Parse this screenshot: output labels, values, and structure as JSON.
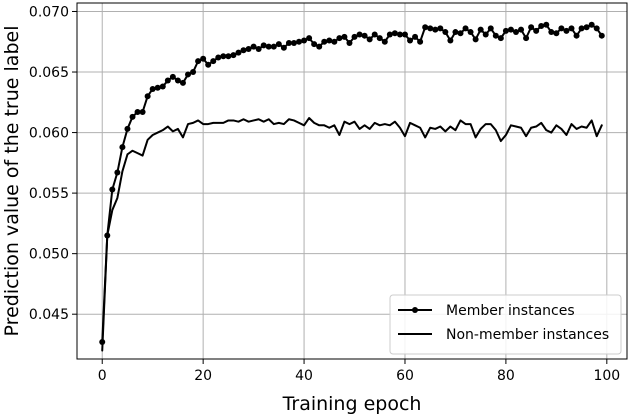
{
  "chart_data": {
    "type": "line",
    "title": "",
    "xlabel": "Training epoch",
    "ylabel": "Prediction value of the true label",
    "xlim": [
      -5,
      104
    ],
    "ylim": [
      0.0413,
      0.0707
    ],
    "xticks": [
      0,
      20,
      40,
      60,
      80,
      100
    ],
    "yticks": [
      0.045,
      0.05,
      0.055,
      0.06,
      0.065,
      0.07
    ],
    "xtick_labels": [
      "0",
      "20",
      "40",
      "60",
      "80",
      "100"
    ],
    "ytick_labels": [
      "0.045",
      "0.050",
      "0.055",
      "0.060",
      "0.065",
      "0.070"
    ],
    "grid": true,
    "legend_position": "lower-right",
    "x": [
      0,
      1,
      2,
      3,
      4,
      5,
      6,
      7,
      8,
      9,
      10,
      11,
      12,
      13,
      14,
      15,
      16,
      17,
      18,
      19,
      20,
      21,
      22,
      23,
      24,
      25,
      26,
      27,
      28,
      29,
      30,
      31,
      32,
      33,
      34,
      35,
      36,
      37,
      38,
      39,
      40,
      41,
      42,
      43,
      44,
      45,
      46,
      47,
      48,
      49,
      50,
      51,
      52,
      53,
      54,
      55,
      56,
      57,
      58,
      59,
      60,
      61,
      62,
      63,
      64,
      65,
      66,
      67,
      68,
      69,
      70,
      71,
      72,
      73,
      74,
      75,
      76,
      77,
      78,
      79,
      80,
      81,
      82,
      83,
      84,
      85,
      86,
      87,
      88,
      89,
      90,
      91,
      92,
      93,
      94,
      95,
      96,
      97,
      98,
      99
    ],
    "series": [
      {
        "name": "Member instances",
        "color": "#000000",
        "marker": "circle",
        "values": [
          0.0427,
          0.0515,
          0.0553,
          0.0567,
          0.0588,
          0.0603,
          0.0613,
          0.0617,
          0.0617,
          0.063,
          0.0636,
          0.0637,
          0.0638,
          0.0643,
          0.0646,
          0.0643,
          0.0641,
          0.0648,
          0.065,
          0.0659,
          0.0661,
          0.0656,
          0.0659,
          0.0662,
          0.0663,
          0.0663,
          0.0664,
          0.0666,
          0.0668,
          0.0669,
          0.0671,
          0.0669,
          0.0672,
          0.0671,
          0.0671,
          0.0673,
          0.067,
          0.0674,
          0.0674,
          0.0675,
          0.0676,
          0.0678,
          0.0673,
          0.0671,
          0.0675,
          0.0676,
          0.0675,
          0.0678,
          0.0679,
          0.0674,
          0.0679,
          0.0681,
          0.068,
          0.0677,
          0.0681,
          0.0678,
          0.0675,
          0.0681,
          0.0682,
          0.0681,
          0.0681,
          0.0676,
          0.0679,
          0.0675,
          0.0687,
          0.0686,
          0.0685,
          0.0686,
          0.0683,
          0.0676,
          0.0683,
          0.0682,
          0.0686,
          0.0683,
          0.0677,
          0.0685,
          0.0681,
          0.0686,
          0.068,
          0.0678,
          0.0684,
          0.0685,
          0.0683,
          0.0685,
          0.0678,
          0.0687,
          0.0684,
          0.0688,
          0.0689,
          0.0683,
          0.0682,
          0.0686,
          0.0684,
          0.0686,
          0.068,
          0.0686,
          0.0687,
          0.0689,
          0.0686,
          0.068
        ]
      },
      {
        "name": "Non-member instances",
        "color": "#000000",
        "marker": "none",
        "values": [
          0.042,
          0.0515,
          0.0536,
          0.0546,
          0.0568,
          0.0582,
          0.0585,
          0.0583,
          0.0581,
          0.0594,
          0.0598,
          0.06,
          0.0602,
          0.0605,
          0.0601,
          0.0603,
          0.0596,
          0.0607,
          0.0608,
          0.061,
          0.0607,
          0.0607,
          0.0608,
          0.0608,
          0.0608,
          0.061,
          0.061,
          0.0609,
          0.0611,
          0.0609,
          0.061,
          0.0611,
          0.0609,
          0.0611,
          0.0607,
          0.0608,
          0.0607,
          0.0611,
          0.061,
          0.0608,
          0.0606,
          0.0612,
          0.0608,
          0.0606,
          0.0606,
          0.0604,
          0.0606,
          0.0598,
          0.0609,
          0.0607,
          0.0609,
          0.0603,
          0.0606,
          0.0603,
          0.0608,
          0.0606,
          0.0607,
          0.0606,
          0.0609,
          0.0604,
          0.0597,
          0.0608,
          0.0606,
          0.0604,
          0.0596,
          0.0604,
          0.0603,
          0.0605,
          0.0601,
          0.0605,
          0.0602,
          0.061,
          0.0607,
          0.0607,
          0.0596,
          0.0603,
          0.0607,
          0.0607,
          0.0602,
          0.0593,
          0.0598,
          0.0606,
          0.0605,
          0.0604,
          0.0597,
          0.0604,
          0.0605,
          0.0608,
          0.0602,
          0.06,
          0.0606,
          0.0603,
          0.0598,
          0.0607,
          0.0603,
          0.0605,
          0.0604,
          0.061,
          0.0597,
          0.0606
        ]
      }
    ]
  }
}
